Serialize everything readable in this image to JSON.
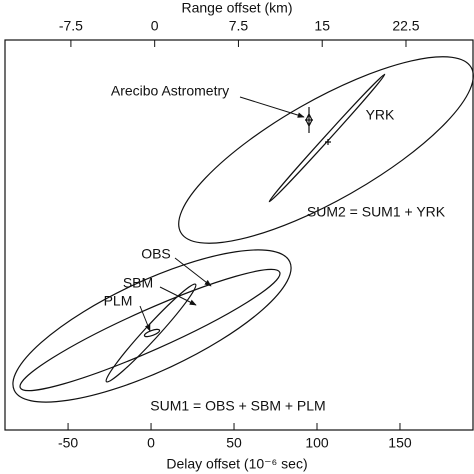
{
  "chart_data": {
    "type": "ellipse",
    "x_label": "Delay offset (10⁻⁶ sec)",
    "x2_label": "Range offset (km)",
    "xlim": [
      -88,
      194
    ],
    "xticks": [
      -50,
      0,
      50,
      100,
      150
    ],
    "x2lim": [
      -13.4,
      28.5
    ],
    "x2ticks": [
      -7.5,
      0,
      7.5,
      15,
      22.5
    ],
    "annotations": [
      "Arecibo Astrometry",
      "YRK",
      "SUM2 = SUM1 + YRK",
      "OBS",
      "SBM",
      "PLM",
      "SUM1 = OBS + SBM + PLM"
    ]
  }
}
